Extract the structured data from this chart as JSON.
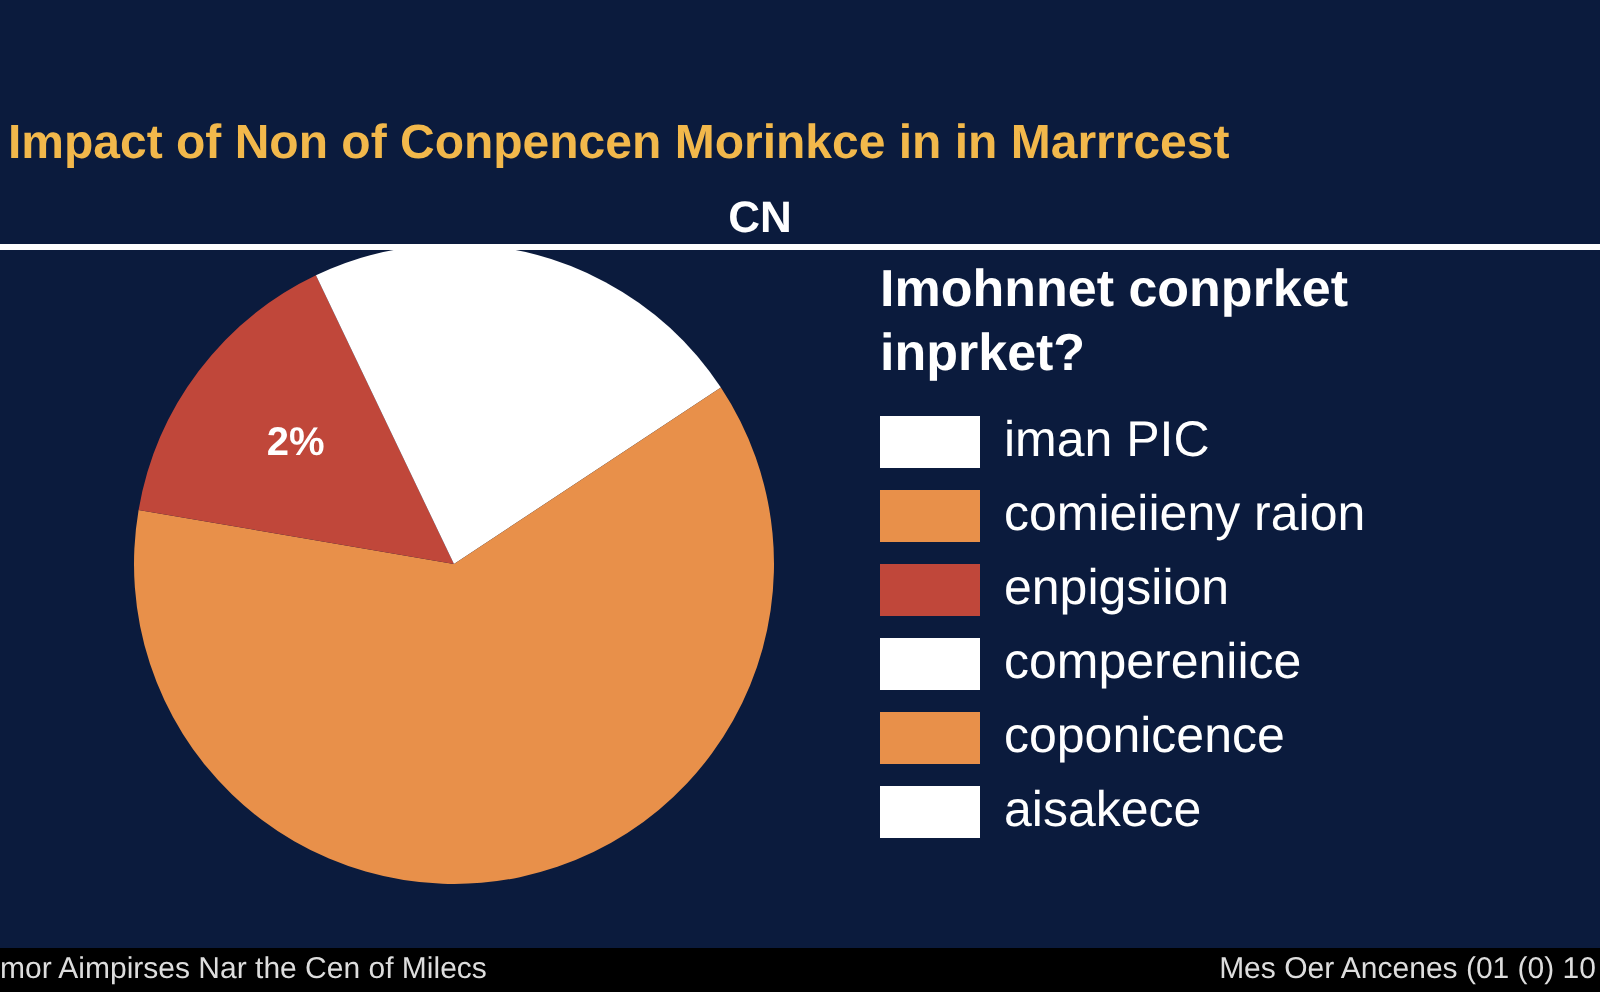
{
  "chart_data": {
    "type": "pie",
    "title": "Impact of Non of Conpencen Morinkce in in Marrrcest",
    "subtitle": "CN",
    "legend_title": "Imohnnet conprket inprket?",
    "categories": [
      "iman PIC",
      "comieiieny raion",
      "enpigsiion",
      "compereniice",
      "coponicence",
      "aisakece"
    ],
    "values": [
      15.7,
      62,
      15.2,
      7.1,
      null,
      null
    ],
    "colors": [
      "#ffffff",
      "#e8904a",
      "#c0473a",
      "#ffffff",
      "#e8904a",
      "#ffffff"
    ],
    "legend": "right",
    "annotations": [
      "mor Aimpirses Nar the Cen of Milecs",
      "Mes Oer Ancenes (01 (0) 10",
      {
        "text": "2%",
        "x": "enpigsiion"
      }
    ]
  }
}
